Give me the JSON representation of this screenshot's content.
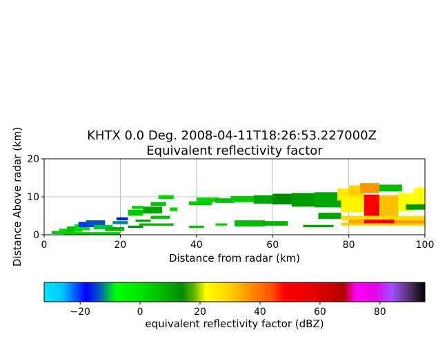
{
  "chart_data": [
    {
      "type": "heatmap",
      "title_line1": "KHTX 0.0 Deg. 2008-04-11T18:26:53.227000Z",
      "title_line2": "Equivalent reflectivity factor",
      "xlabel": "Distance from radar (km)",
      "ylabel": "Distance Above radar  (km)",
      "xlim": [
        0,
        100
      ],
      "ylim": [
        0,
        20
      ],
      "xticks": [
        "0",
        "20",
        "40",
        "60",
        "80",
        "100"
      ],
      "yticks": [
        "0",
        "10",
        "20"
      ],
      "grid": true,
      "segments": [
        {
          "x0": 2,
          "x1": 6,
          "y0": 0.2,
          "y1": 1.0,
          "v": 4
        },
        {
          "x0": 4,
          "x1": 8,
          "y0": 0.5,
          "y1": 1.6,
          "v": 2
        },
        {
          "x0": 6,
          "x1": 10,
          "y0": 0.8,
          "y1": 2.2,
          "v": 6
        },
        {
          "x0": 8,
          "x1": 12,
          "y0": 1.2,
          "y1": 2.8,
          "v": 0
        },
        {
          "x0": 9,
          "x1": 14,
          "y0": 2.0,
          "y1": 3.4,
          "v": -20
        },
        {
          "x0": 11,
          "x1": 16,
          "y0": 2.4,
          "y1": 3.8,
          "v": -14
        },
        {
          "x0": 13,
          "x1": 18,
          "y0": 1.4,
          "y1": 2.6,
          "v": -10
        },
        {
          "x0": 16,
          "x1": 21,
          "y0": 1.0,
          "y1": 2.0,
          "v": 8
        },
        {
          "x0": 5,
          "x1": 20,
          "y0": 0.1,
          "y1": 0.7,
          "v": 3
        },
        {
          "x0": 18,
          "x1": 22,
          "y0": 2.8,
          "y1": 3.6,
          "v": -12
        },
        {
          "x0": 19,
          "x1": 22,
          "y0": 3.8,
          "y1": 4.6,
          "v": -16
        },
        {
          "x0": 22,
          "x1": 26,
          "y0": 5.0,
          "y1": 6.6,
          "v": 4
        },
        {
          "x0": 23,
          "x1": 26,
          "y0": 6.8,
          "y1": 7.6,
          "v": 2
        },
        {
          "x0": 26,
          "x1": 31,
          "y0": 5.6,
          "y1": 7.4,
          "v": 10
        },
        {
          "x0": 28,
          "x1": 32,
          "y0": 7.6,
          "y1": 8.6,
          "v": 6
        },
        {
          "x0": 30,
          "x1": 34,
          "y0": 9.4,
          "y1": 10.4,
          "v": 2
        },
        {
          "x0": 28,
          "x1": 33,
          "y0": 4.2,
          "y1": 5.0,
          "v": 6
        },
        {
          "x0": 33,
          "x1": 35,
          "y0": 6.2,
          "y1": 7.2,
          "v": 2
        },
        {
          "x0": 24,
          "x1": 28,
          "y0": 3.4,
          "y1": 4.0,
          "v": 10
        },
        {
          "x0": 25,
          "x1": 34,
          "y0": 2.4,
          "y1": 3.0,
          "v": 8
        },
        {
          "x0": 22,
          "x1": 26,
          "y0": 1.8,
          "y1": 2.4,
          "v": 12
        },
        {
          "x0": 38,
          "x1": 44,
          "y0": 7.8,
          "y1": 8.8,
          "v": 4
        },
        {
          "x0": 40,
          "x1": 46,
          "y0": 8.6,
          "y1": 9.8,
          "v": 2
        },
        {
          "x0": 45,
          "x1": 50,
          "y0": 8.4,
          "y1": 9.6,
          "v": 6
        },
        {
          "x0": 49,
          "x1": 56,
          "y0": 8.6,
          "y1": 10.2,
          "v": 4
        },
        {
          "x0": 55,
          "x1": 61,
          "y0": 8.2,
          "y1": 10.4,
          "v": 10
        },
        {
          "x0": 60,
          "x1": 66,
          "y0": 8.0,
          "y1": 10.8,
          "v": 14
        },
        {
          "x0": 65,
          "x1": 72,
          "y0": 7.4,
          "y1": 11.0,
          "v": 12
        },
        {
          "x0": 71,
          "x1": 78,
          "y0": 7.2,
          "y1": 11.2,
          "v": 10
        },
        {
          "x0": 50,
          "x1": 58,
          "y0": 2.2,
          "y1": 3.8,
          "v": 6
        },
        {
          "x0": 57,
          "x1": 64,
          "y0": 2.4,
          "y1": 3.6,
          "v": 8
        },
        {
          "x0": 38,
          "x1": 42,
          "y0": 1.8,
          "y1": 2.4,
          "v": 4
        },
        {
          "x0": 45,
          "x1": 48,
          "y0": 2.4,
          "y1": 3.0,
          "v": 2
        },
        {
          "x0": 68,
          "x1": 76,
          "y0": 2.0,
          "y1": 2.6,
          "v": 10
        },
        {
          "x0": 72,
          "x1": 78,
          "y0": 4.2,
          "y1": 5.8,
          "v": 10
        },
        {
          "x0": 77,
          "x1": 81,
          "y0": 9.0,
          "y1": 12.2,
          "v": 26
        },
        {
          "x0": 80,
          "x1": 84,
          "y0": 10.0,
          "y1": 13.0,
          "v": 30
        },
        {
          "x0": 83,
          "x1": 88,
          "y0": 11.0,
          "y1": 13.6,
          "v": 36
        },
        {
          "x0": 88,
          "x1": 94,
          "y0": 11.4,
          "y1": 13.2,
          "v": 6
        },
        {
          "x0": 78,
          "x1": 84,
          "y0": 6.0,
          "y1": 10.0,
          "v": 24
        },
        {
          "x0": 84,
          "x1": 88,
          "y0": 4.0,
          "y1": 10.6,
          "v": 48
        },
        {
          "x0": 86,
          "x1": 88,
          "y0": 5.0,
          "y1": 7.8,
          "v": 56
        },
        {
          "x0": 88,
          "x1": 93,
          "y0": 5.0,
          "y1": 10.4,
          "v": 32
        },
        {
          "x0": 93,
          "x1": 97,
          "y0": 6.2,
          "y1": 11.0,
          "v": 22
        },
        {
          "x0": 97,
          "x1": 100,
          "y0": 8.0,
          "y1": 12.4,
          "v": 22
        },
        {
          "x0": 95,
          "x1": 100,
          "y0": 6.6,
          "y1": 8.0,
          "v": 12
        },
        {
          "x0": 78,
          "x1": 100,
          "y0": 3.8,
          "y1": 5.0,
          "v": 28
        },
        {
          "x0": 78,
          "x1": 100,
          "y0": 2.4,
          "y1": 3.2,
          "v": 30
        },
        {
          "x0": 80,
          "x1": 84,
          "y0": 3.0,
          "y1": 4.0,
          "v": 34
        },
        {
          "x0": 84,
          "x1": 92,
          "y0": 3.0,
          "y1": 4.0,
          "v": 50
        },
        {
          "x0": 92,
          "x1": 100,
          "y0": 3.0,
          "y1": 3.8,
          "v": 36
        }
      ]
    },
    {
      "type": "colorbar",
      "label": "equivalent reflectivity factor (dBZ)",
      "vmin": -32,
      "vmax": 95,
      "ticks": [
        "−20",
        "0",
        "20",
        "40",
        "60",
        "80"
      ],
      "tick_values": [
        -20,
        0,
        20,
        40,
        60,
        80
      ],
      "stops": [
        {
          "v": -32,
          "color": "#00e5ff"
        },
        {
          "v": -26,
          "color": "#00c8ff"
        },
        {
          "v": -22,
          "color": "#0a64ff"
        },
        {
          "v": -18,
          "color": "#0000ff"
        },
        {
          "v": -14,
          "color": "#0050c8"
        },
        {
          "v": -8,
          "color": "#00ff00"
        },
        {
          "v": 0,
          "color": "#00e400"
        },
        {
          "v": 8,
          "color": "#00b400"
        },
        {
          "v": 14,
          "color": "#008c00"
        },
        {
          "v": 18,
          "color": "#64b400"
        },
        {
          "v": 22,
          "color": "#ffff00"
        },
        {
          "v": 30,
          "color": "#ffd200"
        },
        {
          "v": 36,
          "color": "#ff9600"
        },
        {
          "v": 44,
          "color": "#ff5000"
        },
        {
          "v": 48,
          "color": "#ff0000"
        },
        {
          "v": 58,
          "color": "#e60000"
        },
        {
          "v": 64,
          "color": "#c80000"
        },
        {
          "v": 68,
          "color": "#b40000"
        },
        {
          "v": 72,
          "color": "#ff00ff"
        },
        {
          "v": 78,
          "color": "#e600e6"
        },
        {
          "v": 84,
          "color": "#a050ff"
        },
        {
          "v": 90,
          "color": "#503064"
        },
        {
          "v": 95,
          "color": "#000000"
        }
      ]
    }
  ]
}
